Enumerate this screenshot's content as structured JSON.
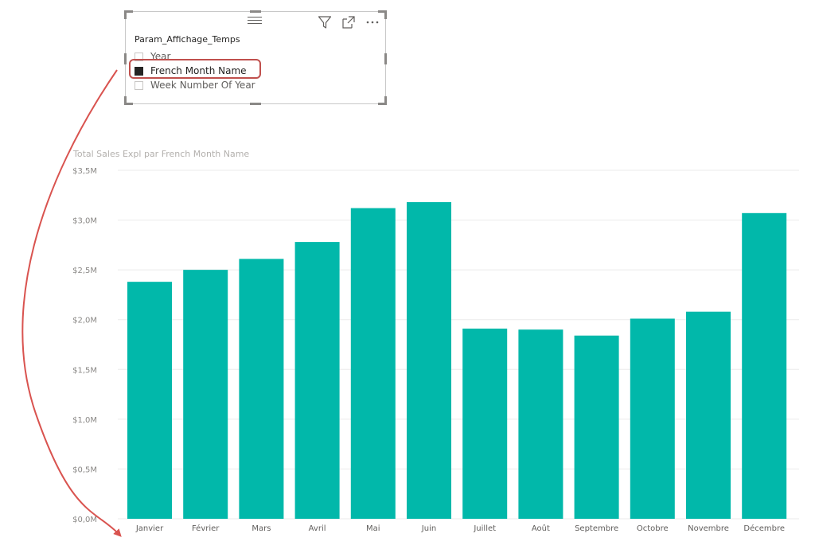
{
  "slicer": {
    "title": "Param_Affichage_Temps",
    "items": [
      {
        "label": "Year",
        "selected": false
      },
      {
        "label": "French Month Name",
        "selected": true
      },
      {
        "label": "Week Number Of Year",
        "selected": false
      }
    ],
    "icons": [
      "drag-handle-icon",
      "filter-icon",
      "focus-mode-icon",
      "more-options-icon"
    ]
  },
  "chart_data": {
    "type": "bar",
    "title": "Total Sales Expl par French Month Name",
    "categories": [
      "Janvier",
      "Février",
      "Mars",
      "Avril",
      "Mai",
      "Juin",
      "Juillet",
      "Août",
      "Septembre",
      "Octobre",
      "Novembre",
      "Décembre"
    ],
    "values": [
      2.38,
      2.5,
      2.61,
      2.78,
      3.12,
      3.18,
      1.91,
      1.9,
      1.84,
      2.01,
      2.08,
      3.07
    ],
    "ylim": [
      0,
      3.5
    ],
    "yticks": [
      0,
      0.5,
      1.0,
      1.5,
      2.0,
      2.5,
      3.0,
      3.5
    ],
    "ytick_labels": [
      "$0,0M",
      "$0,5M",
      "$1,0M",
      "$1,5M",
      "$2,0M",
      "$2,5M",
      "$3,0M",
      "$3,5M"
    ],
    "grid": true,
    "bar_color": "#01b8aa"
  },
  "annotation": {
    "highlight_color": "#c0504d",
    "arrow_color": "#d9534f"
  }
}
